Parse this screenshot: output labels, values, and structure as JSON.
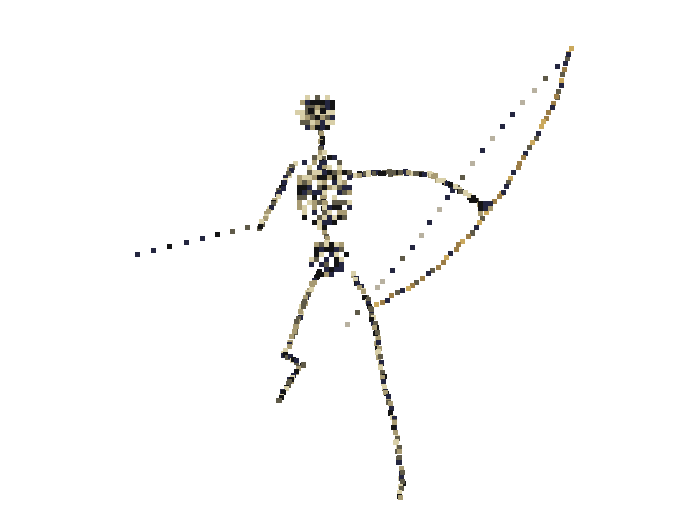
{
  "scene": {
    "subject": "skeleton-archer-sprite",
    "background_color": "#ffffff",
    "palette": {
      "bone_light": "#d8cfa8",
      "bone_mid": "#a79a72",
      "bone_dark": "#5f5a48",
      "navy": "#242640",
      "shadow": "#141414",
      "bow_gold": "#caa85c",
      "bow_tan": "#9c7d46",
      "string": "#b8b1a0"
    }
  }
}
